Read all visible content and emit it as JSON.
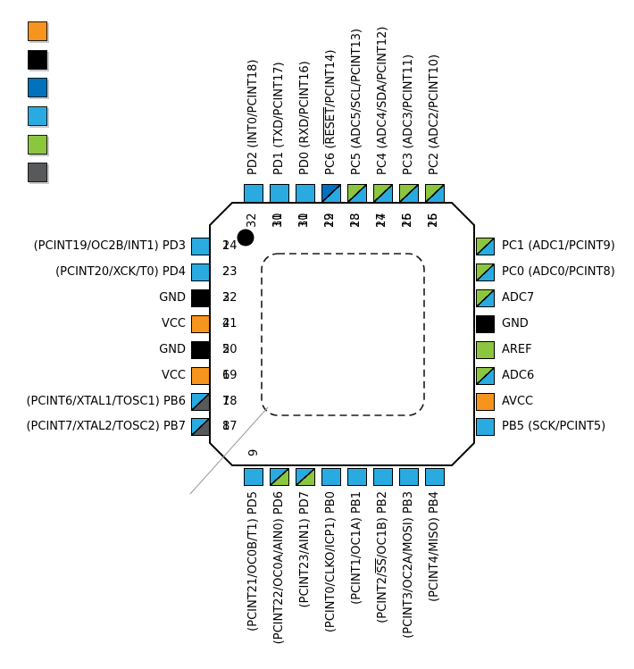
{
  "colors": {
    "orange": "#F7941E",
    "black": "#000000",
    "blue": "#0071BC",
    "cyan": "#29ABE2",
    "green": "#8CC63F",
    "gray": "#58595B"
  },
  "legend": {
    "items": [
      {
        "name": "legend-swatch-orange",
        "color": "orange"
      },
      {
        "name": "legend-swatch-black",
        "color": "black"
      },
      {
        "name": "legend-swatch-blue",
        "color": "blue"
      },
      {
        "name": "legend-swatch-cyan",
        "color": "cyan"
      },
      {
        "name": "legend-swatch-green",
        "color": "green"
      },
      {
        "name": "legend-swatch-gray",
        "color": "gray"
      }
    ]
  },
  "package": {
    "corner_number": "9"
  },
  "pins": {
    "top": [
      {
        "number": "32",
        "ghost": "",
        "label": "PD2 (INT0/PCINT18)",
        "pad": "cyan"
      },
      {
        "number": "31",
        "ghost": "10",
        "label": "PD1 (TXD/PCINT17)",
        "pad": "cyan"
      },
      {
        "number": "30",
        "ghost": "11",
        "label": "PD0 (RXD/PCINT16)",
        "pad": "cyan"
      },
      {
        "number": "29",
        "ghost": "12",
        "label": "PC6 (RESET/PCINT14)",
        "overline": "RESET",
        "pad": "blue/cyan"
      },
      {
        "number": "28",
        "ghost": "13",
        "label": "PC5 (ADC5/SCL/PCINT13)",
        "pad": "green/cyan"
      },
      {
        "number": "27",
        "ghost": "14",
        "label": "PC4 (ADC4/SDA/PCINT12)",
        "pad": "green/cyan"
      },
      {
        "number": "26",
        "ghost": "15",
        "label": "PC3 (ADC3/PCINT11)",
        "pad": "green/cyan"
      },
      {
        "number": "25",
        "ghost": "16",
        "label": "PC2 (ADC2/PCINT10)",
        "pad": "green/cyan"
      }
    ],
    "left": [
      {
        "number": "1",
        "ghost": "24",
        "label": "(PCINT19/OC2B/INT1) PD3",
        "pad": "cyan"
      },
      {
        "number": "2",
        "ghost": "23",
        "label": "(PCINT20/XCK/T0) PD4",
        "pad": "cyan"
      },
      {
        "number": "3",
        "ghost": "22",
        "label": "GND",
        "pad": "black"
      },
      {
        "number": "4",
        "ghost": "21",
        "label": "VCC",
        "pad": "orange"
      },
      {
        "number": "5",
        "ghost": "20",
        "label": "GND",
        "pad": "black"
      },
      {
        "number": "6",
        "ghost": "19",
        "label": "VCC",
        "pad": "orange"
      },
      {
        "number": "7",
        "ghost": "18",
        "label": "(PCINT6/XTAL1/TOSC1) PB6",
        "pad": "cyan/gray"
      },
      {
        "number": "8",
        "ghost": "17",
        "label": "(PCINT7/XTAL2/TOSC2) PB7",
        "pad": "cyan/gray"
      }
    ],
    "right": [
      {
        "label": "PC1 (ADC1/PCINT9)",
        "pad": "green/cyan"
      },
      {
        "label": "PC0 (ADC0/PCINT8)",
        "pad": "green/cyan"
      },
      {
        "label": "ADC7",
        "pad": "green/cyan"
      },
      {
        "label": "GND",
        "pad": "black"
      },
      {
        "label": "AREF",
        "pad": "green"
      },
      {
        "label": "ADC6",
        "pad": "green/cyan"
      },
      {
        "label": "AVCC",
        "pad": "orange"
      },
      {
        "label": "PB5 (SCK/PCINT5)",
        "pad": "cyan"
      }
    ],
    "bottom": [
      {
        "label": "(PCINT21/OC0B/T1) PD5",
        "pad": "cyan"
      },
      {
        "label": "(PCINT22/OC0A/AIN0) PD6",
        "pad": "cyan/green"
      },
      {
        "label": "(PCINT23/AIN1) PD7",
        "pad": "cyan/green"
      },
      {
        "label": "(PCINT0/CLKO/ICP1) PB0",
        "pad": "cyan"
      },
      {
        "label": "(PCINT1/OC1A) PB1",
        "pad": "cyan"
      },
      {
        "label": "(PCINT2/SS/OC1B) PB2",
        "overline": "SS",
        "pad": "cyan"
      },
      {
        "label": "(PCINT3/OC2A/MOSI) PB3",
        "pad": "cyan"
      },
      {
        "label": "(PCINT4/MISO) PB4",
        "pad": "cyan"
      }
    ]
  }
}
